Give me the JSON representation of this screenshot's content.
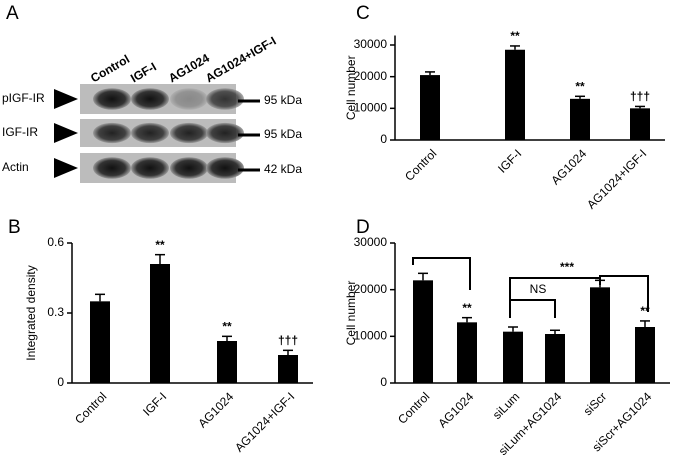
{
  "blot": {
    "label": "A",
    "lanes": [
      "Control",
      "IGF-I",
      "AG1024",
      "AG1024+IGF-I"
    ],
    "rows": [
      {
        "name": "pIGF-IR",
        "size": "95 kDa"
      },
      {
        "name": "IGF-IR",
        "size": "95 kDa"
      },
      {
        "name": "Actin",
        "size": "42 kDa"
      }
    ]
  },
  "chart_data": [
    {
      "type": "bar",
      "label": "B",
      "y_label": "Integrated density",
      "categories": [
        "Control",
        "IGF-I",
        "AG1024",
        "AG1024+IGF-I"
      ],
      "values": [
        0.35,
        0.51,
        0.18,
        0.12
      ],
      "errors": [
        0.03,
        0.04,
        0.02,
        0.02
      ],
      "value_annotations": [
        null,
        "**",
        "**",
        "†††"
      ],
      "color": "#000000",
      "ylim": [
        0,
        0.6
      ],
      "yticks": [
        0,
        0.3,
        0.6
      ]
    },
    {
      "type": "bar",
      "label": "C",
      "y_label": "Cell number",
      "categories": [
        "Control",
        "IGF-I",
        "AG1024",
        "AG1024+IGF-I"
      ],
      "values": [
        20500,
        28500,
        13000,
        10000
      ],
      "errors": [
        1000,
        1200,
        800,
        600
      ],
      "value_annotations": [
        null,
        "**",
        "**",
        "†††"
      ],
      "color": "#000000",
      "ylim": [
        0,
        33000
      ],
      "yticks": [
        0,
        10000,
        20000,
        30000
      ]
    },
    {
      "type": "bar",
      "label": "D",
      "y_label": "Cell number",
      "categories": [
        "Control",
        "AG1024",
        "siLum",
        "siLum+AG1024",
        "siScr",
        "siScr+AG1024"
      ],
      "values": [
        22000,
        13000,
        11000,
        10500,
        20500,
        12000
      ],
      "errors": [
        1500,
        1000,
        1000,
        800,
        1500,
        1300
      ],
      "value_annotations": [
        null,
        "**",
        null,
        null,
        null,
        "**"
      ],
      "color": "#000000",
      "ylim": [
        0,
        30000
      ],
      "yticks": [
        0,
        10000,
        20000,
        30000
      ],
      "annotations": [
        "NS",
        "***"
      ]
    }
  ]
}
